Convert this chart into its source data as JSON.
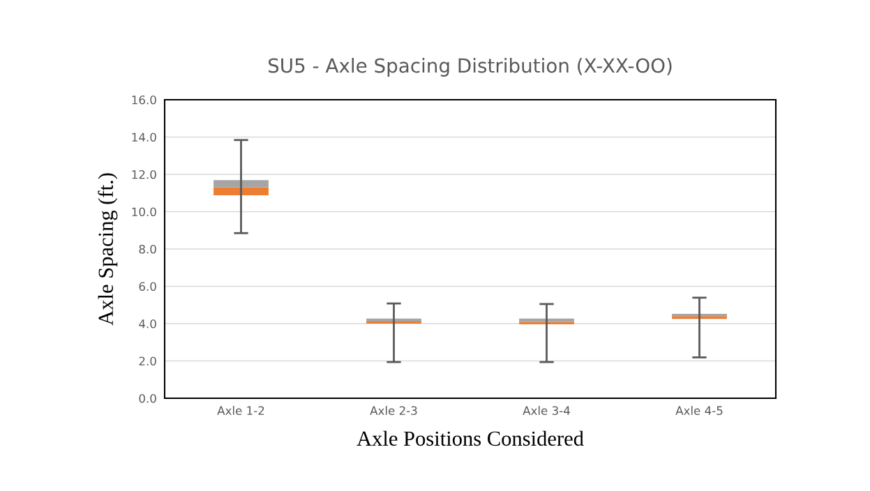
{
  "chart_data": {
    "type": "box",
    "title": "SU5 - Axle Spacing Distribution (X-XX-OO)",
    "xlabel": "Axle Positions Considered",
    "ylabel": "Axle Spacing (ft.)",
    "categories": [
      "Axle 1-2",
      "Axle 2-3",
      "Axle 3-4",
      "Axle 4-5"
    ],
    "series": [
      {
        "color": "#a5a5a5",
        "colors": [
          "#ed7d31",
          "#ed7d31",
          "#ed7d31",
          "#ed7d31"
        ],
        "boxes": [
          {
            "low": 8.85,
            "q1": 10.88,
            "median": 11.31,
            "q3": 11.69,
            "high": 13.84
          },
          {
            "low": 1.94,
            "q1": 4.0,
            "median": 4.11,
            "q3": 4.27,
            "high": 5.08
          },
          {
            "low": 1.94,
            "q1": 3.96,
            "median": 4.09,
            "q3": 4.27,
            "high": 5.05
          },
          {
            "low": 2.19,
            "q1": 4.25,
            "median": 4.4,
            "q3": 4.52,
            "high": 5.39
          }
        ]
      }
    ],
    "ylim": [
      0,
      16
    ],
    "yticks": [
      {
        "value": 0,
        "label": "0.0"
      },
      {
        "value": 2,
        "label": "2.0"
      },
      {
        "value": 4,
        "label": "4.0"
      },
      {
        "value": 6,
        "label": "6.0"
      },
      {
        "value": 8,
        "label": "8.0"
      },
      {
        "value": 10,
        "label": "10.0"
      },
      {
        "value": 12,
        "label": "12.0"
      },
      {
        "value": 14,
        "label": "14.0"
      },
      {
        "value": 16,
        "label": "16.0"
      }
    ],
    "grid": "y"
  }
}
